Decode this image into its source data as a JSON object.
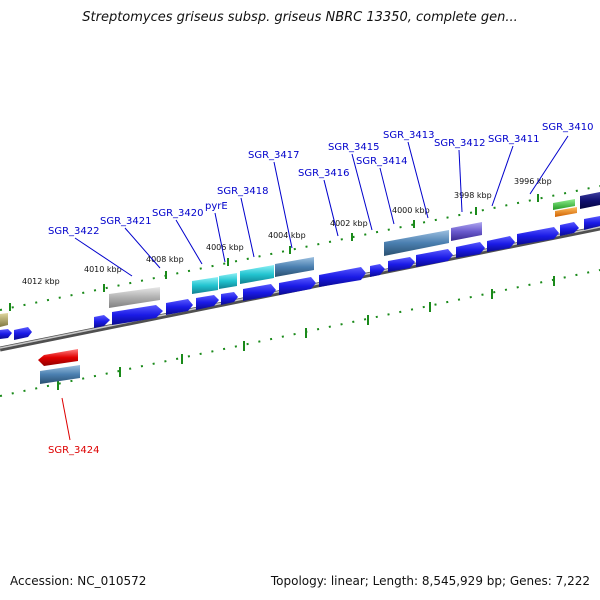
{
  "title": "Streptomyces griseus subsp. griseus NBRC 13350, complete gen...",
  "footer": {
    "accession": "Accession: NC_010572",
    "topology": "Topology: linear; Length: 8,545,929 bp; Genes: 7,222"
  },
  "ticks": [
    {
      "label": "4012 kbp"
    },
    {
      "label": "4010 kbp"
    },
    {
      "label": "4008 kbp"
    },
    {
      "label": "4006 kbp"
    },
    {
      "label": "4004 kbp"
    },
    {
      "label": "4002 kbp"
    },
    {
      "label": "4000 kbp"
    },
    {
      "label": "3998 kbp"
    },
    {
      "label": "3996 kbp"
    }
  ],
  "gene_labels": [
    {
      "name": "SGR_3422",
      "color": "#0000cc"
    },
    {
      "name": "SGR_3421",
      "color": "#0000cc"
    },
    {
      "name": "SGR_3420",
      "color": "#0000cc"
    },
    {
      "name": "pyrE",
      "color": "#0000cc"
    },
    {
      "name": "SGR_3418",
      "color": "#0000cc"
    },
    {
      "name": "SGR_3417",
      "color": "#0000cc"
    },
    {
      "name": "SGR_3416",
      "color": "#0000cc"
    },
    {
      "name": "SGR_3415",
      "color": "#0000cc"
    },
    {
      "name": "SGR_3414",
      "color": "#0000cc"
    },
    {
      "name": "SGR_3413",
      "color": "#0000cc"
    },
    {
      "name": "SGR_3412",
      "color": "#0000cc"
    },
    {
      "name": "SGR_3411",
      "color": "#0000cc"
    },
    {
      "name": "SGR_3410",
      "color": "#0000cc"
    },
    {
      "name": "SGR_3424",
      "color": "#dd0000"
    }
  ],
  "colors": {
    "gene_blue": "#1a1ae6",
    "rna_cyan": "#22c4d0",
    "pseudo_gray": "#b0b0b0",
    "steel": "#4a7fb0",
    "purple": "#6a5acd",
    "navy": "#101070",
    "red": "#e00000",
    "green": "#33bb33",
    "orange": "#ff8800",
    "olive": "#a8a060",
    "tick_green": "#1a8a1a",
    "backbone": "#808080"
  }
}
